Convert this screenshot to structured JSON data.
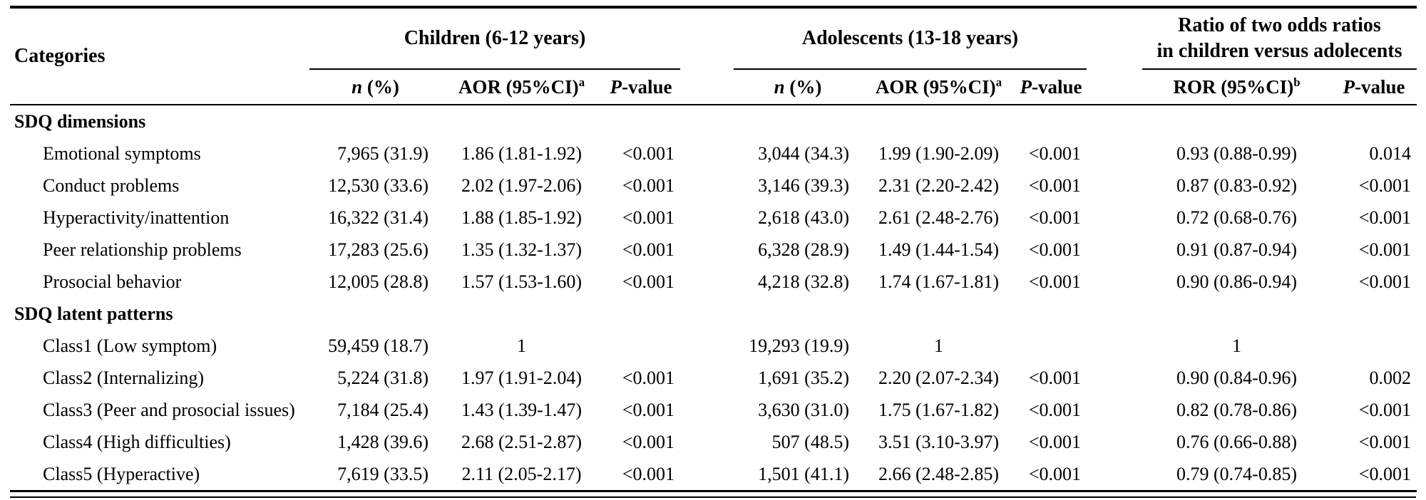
{
  "table": {
    "categories_header": "Categories",
    "children_group": "Children (6-12 years)",
    "adolescents_group": "Adolescents (13-18 years)",
    "ror_group_line1": "Ratio of two odds ratios",
    "ror_group_line2": "in children versus adolecents",
    "sub": {
      "n_italic": "n",
      "n_rest": " (%)",
      "aor_label": "AOR (95%CI)",
      "aor_sup": "a",
      "ror_label": "ROR (95%CI)",
      "ror_sup": "b",
      "p_italic": "P",
      "p_rest": "-value"
    },
    "sections": [
      {
        "title": "SDQ dimensions",
        "rows": [
          {
            "category": "Emotional symptoms",
            "c_n": "7,965 (31.9)",
            "c_aor": "1.86 (1.81-1.92)",
            "c_p": "<0.001",
            "a_n": "3,044 (34.3)",
            "a_aor": "1.99 (1.90-2.09)",
            "a_p": "<0.001",
            "ror": "0.93 (0.88-0.99)",
            "r_p": "0.014"
          },
          {
            "category": "Conduct problems",
            "c_n": "12,530 (33.6)",
            "c_aor": "2.02 (1.97-2.06)",
            "c_p": "<0.001",
            "a_n": "3,146 (39.3)",
            "a_aor": "2.31 (2.20-2.42)",
            "a_p": "<0.001",
            "ror": "0.87 (0.83-0.92)",
            "r_p": "<0.001"
          },
          {
            "category": "Hyperactivity/inattention",
            "c_n": "16,322 (31.4)",
            "c_aor": "1.88 (1.85-1.92)",
            "c_p": "<0.001",
            "a_n": "2,618 (43.0)",
            "a_aor": "2.61 (2.48-2.76)",
            "a_p": "<0.001",
            "ror": "0.72 (0.68-0.76)",
            "r_p": "<0.001"
          },
          {
            "category": "Peer relationship problems",
            "c_n": "17,283 (25.6)",
            "c_aor": "1.35 (1.32-1.37)",
            "c_p": "<0.001",
            "a_n": "6,328 (28.9)",
            "a_aor": "1.49 (1.44-1.54)",
            "a_p": "<0.001",
            "ror": "0.91 (0.87-0.94)",
            "r_p": "<0.001"
          },
          {
            "category": "Prosocial behavior",
            "c_n": "12,005 (28.8)",
            "c_aor": "1.57 (1.53-1.60)",
            "c_p": "<0.001",
            "a_n": "4,218 (32.8)",
            "a_aor": "1.74 (1.67-1.81)",
            "a_p": "<0.001",
            "ror": "0.90 (0.86-0.94)",
            "r_p": "<0.001"
          }
        ]
      },
      {
        "title": "SDQ latent patterns",
        "rows": [
          {
            "category": "Class1 (Low symptom)",
            "c_n": "59,459 (18.7)",
            "c_aor": "1",
            "c_p": "",
            "a_n": "19,293 (19.9)",
            "a_aor": "1",
            "a_p": "",
            "ror": "1",
            "r_p": ""
          },
          {
            "category": "Class2 (Internalizing)",
            "c_n": "5,224 (31.8)",
            "c_aor": "1.97 (1.91-2.04)",
            "c_p": "<0.001",
            "a_n": "1,691 (35.2)",
            "a_aor": "2.20 (2.07-2.34)",
            "a_p": "<0.001",
            "ror": "0.90 (0.84-0.96)",
            "r_p": "0.002"
          },
          {
            "category": "Class3 (Peer and prosocial issues)",
            "c_n": "7,184 (25.4)",
            "c_aor": "1.43 (1.39-1.47)",
            "c_p": "<0.001",
            "a_n": "3,630 (31.0)",
            "a_aor": "1.75 (1.67-1.82)",
            "a_p": "<0.001",
            "ror": "0.82 (0.78-0.86)",
            "r_p": "<0.001"
          },
          {
            "category": "Class4 (High difficulties)",
            "c_n": "1,428 (39.6)",
            "c_aor": "2.68 (2.51-2.87)",
            "c_p": "<0.001",
            "a_n": "507 (48.5)",
            "a_aor": "3.51 (3.10-3.97)",
            "a_p": "<0.001",
            "ror": "0.76 (0.66-0.88)",
            "r_p": "<0.001"
          },
          {
            "category": "Class5 (Hyperactive)",
            "c_n": "7,619 (33.5)",
            "c_aor": "2.11 (2.05-2.17)",
            "c_p": "<0.001",
            "a_n": "1,501 (41.1)",
            "a_aor": "2.66 (2.48-2.85)",
            "a_p": "<0.001",
            "ror": "0.79 (0.74-0.85)",
            "r_p": "<0.001"
          }
        ]
      }
    ]
  }
}
